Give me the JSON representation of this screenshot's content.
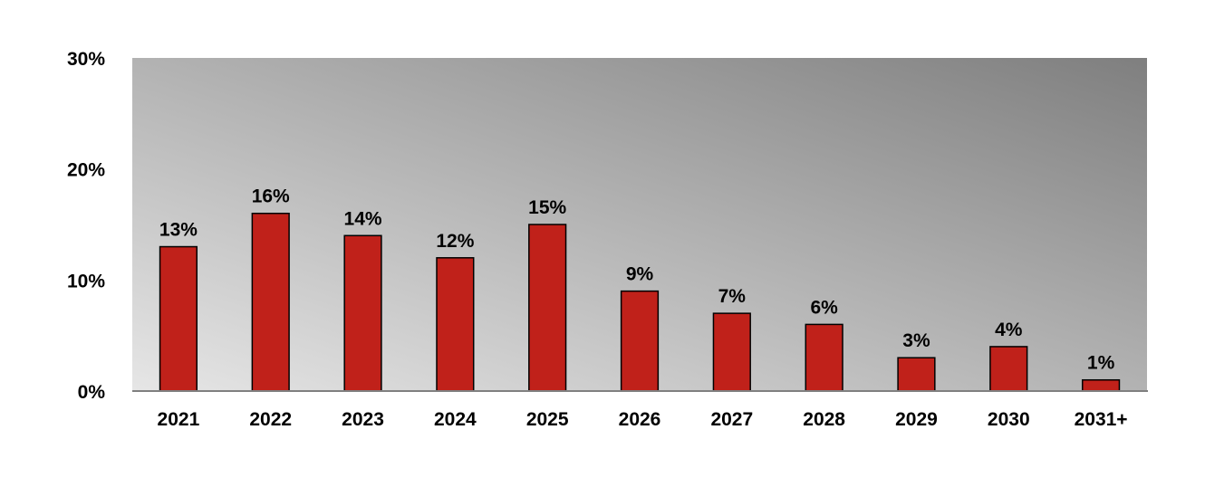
{
  "chart_data": {
    "type": "bar",
    "title": "",
    "xlabel": "",
    "ylabel": "",
    "categories": [
      "2021",
      "2022",
      "2023",
      "2024",
      "2025",
      "2026",
      "2027",
      "2028",
      "2029",
      "2030",
      "2031+"
    ],
    "values": [
      13,
      16,
      14,
      12,
      15,
      9,
      7,
      6,
      3,
      4,
      1
    ],
    "data_labels": [
      "13%",
      "16%",
      "14%",
      "12%",
      "15%",
      "9%",
      "7%",
      "6%",
      "3%",
      "4%",
      "1%"
    ],
    "ylim": [
      0,
      30
    ],
    "yticks": [
      0,
      10,
      20,
      30
    ],
    "ytick_labels": [
      "0%",
      "10%",
      "20%",
      "30%"
    ],
    "grid": false,
    "legend": "none",
    "colors": {
      "bar": "#c0211a",
      "bar_outline": "#000000",
      "plot_bg_light": "#e6e6e6",
      "plot_bg_dark": "#7f7f7f",
      "axis": "#808080"
    }
  }
}
